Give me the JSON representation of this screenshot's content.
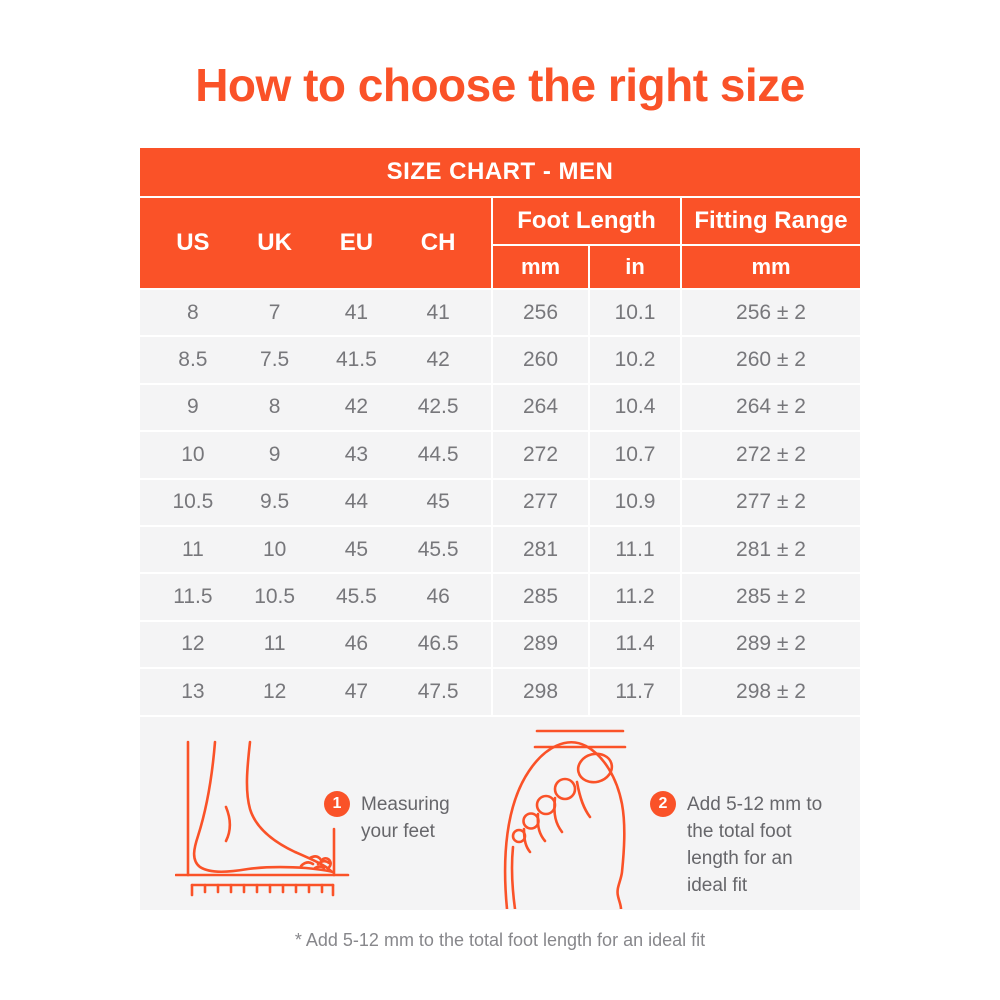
{
  "page": {
    "title": "How to choose the right size",
    "footnote": "* Add 5-12 mm to the total foot length for an ideal fit"
  },
  "colors": {
    "accent_orange": "#FA5228",
    "row_background": "#F4F4F5",
    "data_text_gray": "#77777B",
    "note_text_gray": "#66666A"
  },
  "table": {
    "caption": "SIZE CHART - MEN",
    "size_columns": [
      "US",
      "UK",
      "EU",
      "CH"
    ],
    "foot_length_label": "Foot Length",
    "fitting_range_label": "Fitting Range",
    "sub_headers": [
      "mm",
      "in",
      "mm"
    ],
    "rows": [
      [
        "8",
        "7",
        "41",
        "41",
        "256",
        "10.1",
        "256 ± 2"
      ],
      [
        "8.5",
        "7.5",
        "41.5",
        "42",
        "260",
        "10.2",
        "260 ± 2"
      ],
      [
        "9",
        "8",
        "42",
        "42.5",
        "264",
        "10.4",
        "264 ± 2"
      ],
      [
        "10",
        "9",
        "43",
        "44.5",
        "272",
        "10.7",
        "272 ± 2"
      ],
      [
        "10.5",
        "9.5",
        "44",
        "45",
        "277",
        "10.9",
        "277 ± 2"
      ],
      [
        "11",
        "10",
        "45",
        "45.5",
        "281",
        "11.1",
        "281 ± 2"
      ],
      [
        "11.5",
        "10.5",
        "45.5",
        "46",
        "285",
        "11.2",
        "285 ± 2"
      ],
      [
        "12",
        "11",
        "46",
        "46.5",
        "289",
        "11.4",
        "289 ± 2"
      ],
      [
        "13",
        "12",
        "47",
        "47.5",
        "298",
        "11.7",
        "298 ± 2"
      ]
    ]
  },
  "annotations": [
    {
      "number": "1",
      "text": "Measuring your feet"
    },
    {
      "number": "2",
      "text": "Add 5-12 mm to the total foot length for an ideal fit"
    }
  ],
  "icons": [
    {
      "name": "foot-side-view-icon",
      "meaning": "side view of a foot against a wall with a ruler"
    },
    {
      "name": "foot-top-view-icon",
      "meaning": "top view of a foot with measuring lines at the toes"
    }
  ]
}
